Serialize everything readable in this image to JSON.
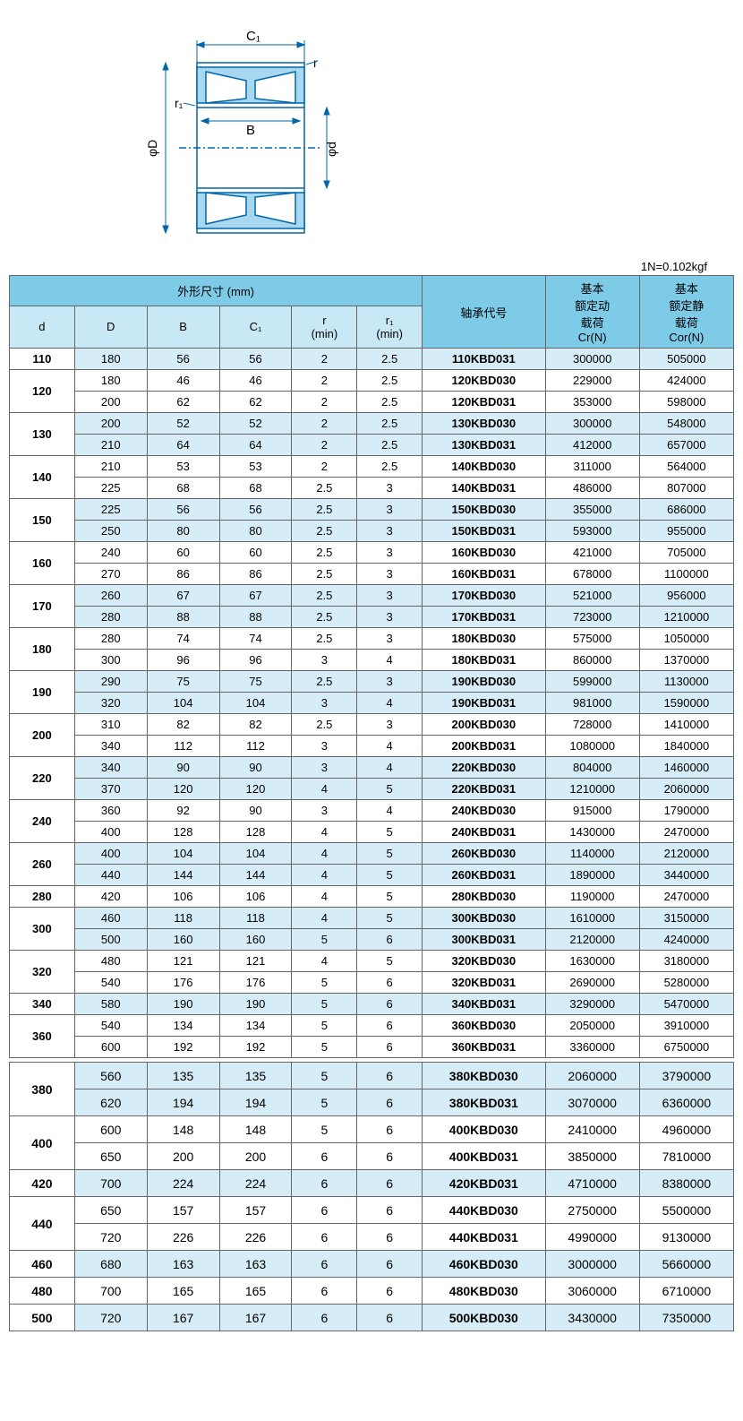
{
  "note": "1N=0.102kgf",
  "diagram_labels": {
    "C1": "C₁",
    "r": "r",
    "r1": "r₁",
    "B": "B",
    "phiD": "φD",
    "phid": "φd"
  },
  "headers": {
    "dims_title": "外形尺寸 (mm)",
    "bearing_no": "轴承代号",
    "cr_title": "基本\n额定动\n载荷\nCr(N)",
    "cor_title": "基本\n额定静\n载荷\nCor(N)",
    "d": "d",
    "D": "D",
    "B": "B",
    "C1": "C₁",
    "r": "r\n(min)",
    "r1": "r₁\n(min)"
  },
  "groups": [
    {
      "d": "110",
      "band": "a",
      "rows": [
        {
          "D": "180",
          "B": "56",
          "C1": "56",
          "r": "2",
          "r1": "2.5",
          "no": "110KBD031",
          "cr": "300000",
          "cor": "505000"
        }
      ]
    },
    {
      "d": "120",
      "band": "b",
      "rows": [
        {
          "D": "180",
          "B": "46",
          "C1": "46",
          "r": "2",
          "r1": "2.5",
          "no": "120KBD030",
          "cr": "229000",
          "cor": "424000"
        },
        {
          "D": "200",
          "B": "62",
          "C1": "62",
          "r": "2",
          "r1": "2.5",
          "no": "120KBD031",
          "cr": "353000",
          "cor": "598000"
        }
      ]
    },
    {
      "d": "130",
      "band": "a",
      "rows": [
        {
          "D": "200",
          "B": "52",
          "C1": "52",
          "r": "2",
          "r1": "2.5",
          "no": "130KBD030",
          "cr": "300000",
          "cor": "548000"
        },
        {
          "D": "210",
          "B": "64",
          "C1": "64",
          "r": "2",
          "r1": "2.5",
          "no": "130KBD031",
          "cr": "412000",
          "cor": "657000"
        }
      ]
    },
    {
      "d": "140",
      "band": "b",
      "rows": [
        {
          "D": "210",
          "B": "53",
          "C1": "53",
          "r": "2",
          "r1": "2.5",
          "no": "140KBD030",
          "cr": "311000",
          "cor": "564000"
        },
        {
          "D": "225",
          "B": "68",
          "C1": "68",
          "r": "2.5",
          "r1": "3",
          "no": "140KBD031",
          "cr": "486000",
          "cor": "807000"
        }
      ]
    },
    {
      "d": "150",
      "band": "a",
      "rows": [
        {
          "D": "225",
          "B": "56",
          "C1": "56",
          "r": "2.5",
          "r1": "3",
          "no": "150KBD030",
          "cr": "355000",
          "cor": "686000"
        },
        {
          "D": "250",
          "B": "80",
          "C1": "80",
          "r": "2.5",
          "r1": "3",
          "no": "150KBD031",
          "cr": "593000",
          "cor": "955000"
        }
      ]
    },
    {
      "d": "160",
      "band": "b",
      "rows": [
        {
          "D": "240",
          "B": "60",
          "C1": "60",
          "r": "2.5",
          "r1": "3",
          "no": "160KBD030",
          "cr": "421000",
          "cor": "705000"
        },
        {
          "D": "270",
          "B": "86",
          "C1": "86",
          "r": "2.5",
          "r1": "3",
          "no": "160KBD031",
          "cr": "678000",
          "cor": "1100000"
        }
      ]
    },
    {
      "d": "170",
      "band": "a",
      "rows": [
        {
          "D": "260",
          "B": "67",
          "C1": "67",
          "r": "2.5",
          "r1": "3",
          "no": "170KBD030",
          "cr": "521000",
          "cor": "956000"
        },
        {
          "D": "280",
          "B": "88",
          "C1": "88",
          "r": "2.5",
          "r1": "3",
          "no": "170KBD031",
          "cr": "723000",
          "cor": "1210000"
        }
      ]
    },
    {
      "d": "180",
      "band": "b",
      "rows": [
        {
          "D": "280",
          "B": "74",
          "C1": "74",
          "r": "2.5",
          "r1": "3",
          "no": "180KBD030",
          "cr": "575000",
          "cor": "1050000"
        },
        {
          "D": "300",
          "B": "96",
          "C1": "96",
          "r": "3",
          "r1": "4",
          "no": "180KBD031",
          "cr": "860000",
          "cor": "1370000"
        }
      ]
    },
    {
      "d": "190",
      "band": "a",
      "rows": [
        {
          "D": "290",
          "B": "75",
          "C1": "75",
          "r": "2.5",
          "r1": "3",
          "no": "190KBD030",
          "cr": "599000",
          "cor": "1130000"
        },
        {
          "D": "320",
          "B": "104",
          "C1": "104",
          "r": "3",
          "r1": "4",
          "no": "190KBD031",
          "cr": "981000",
          "cor": "1590000"
        }
      ]
    },
    {
      "d": "200",
      "band": "b",
      "rows": [
        {
          "D": "310",
          "B": "82",
          "C1": "82",
          "r": "2.5",
          "r1": "3",
          "no": "200KBD030",
          "cr": "728000",
          "cor": "1410000"
        },
        {
          "D": "340",
          "B": "112",
          "C1": "112",
          "r": "3",
          "r1": "4",
          "no": "200KBD031",
          "cr": "1080000",
          "cor": "1840000"
        }
      ]
    },
    {
      "d": "220",
      "band": "a",
      "rows": [
        {
          "D": "340",
          "B": "90",
          "C1": "90",
          "r": "3",
          "r1": "4",
          "no": "220KBD030",
          "cr": "804000",
          "cor": "1460000"
        },
        {
          "D": "370",
          "B": "120",
          "C1": "120",
          "r": "4",
          "r1": "5",
          "no": "220KBD031",
          "cr": "1210000",
          "cor": "2060000"
        }
      ]
    },
    {
      "d": "240",
      "band": "b",
      "rows": [
        {
          "D": "360",
          "B": "92",
          "C1": "90",
          "r": "3",
          "r1": "4",
          "no": "240KBD030",
          "cr": "915000",
          "cor": "1790000"
        },
        {
          "D": "400",
          "B": "128",
          "C1": "128",
          "r": "4",
          "r1": "5",
          "no": "240KBD031",
          "cr": "1430000",
          "cor": "2470000"
        }
      ]
    },
    {
      "d": "260",
      "band": "a",
      "rows": [
        {
          "D": "400",
          "B": "104",
          "C1": "104",
          "r": "4",
          "r1": "5",
          "no": "260KBD030",
          "cr": "1140000",
          "cor": "2120000"
        },
        {
          "D": "440",
          "B": "144",
          "C1": "144",
          "r": "4",
          "r1": "5",
          "no": "260KBD031",
          "cr": "1890000",
          "cor": "3440000"
        }
      ]
    },
    {
      "d": "280",
      "band": "b",
      "rows": [
        {
          "D": "420",
          "B": "106",
          "C1": "106",
          "r": "4",
          "r1": "5",
          "no": "280KBD030",
          "cr": "1190000",
          "cor": "2470000"
        }
      ]
    },
    {
      "d": "300",
      "band": "a",
      "rows": [
        {
          "D": "460",
          "B": "118",
          "C1": "118",
          "r": "4",
          "r1": "5",
          "no": "300KBD030",
          "cr": "1610000",
          "cor": "3150000"
        },
        {
          "D": "500",
          "B": "160",
          "C1": "160",
          "r": "5",
          "r1": "6",
          "no": "300KBD031",
          "cr": "2120000",
          "cor": "4240000"
        }
      ]
    },
    {
      "d": "320",
      "band": "b",
      "rows": [
        {
          "D": "480",
          "B": "121",
          "C1": "121",
          "r": "4",
          "r1": "5",
          "no": "320KBD030",
          "cr": "1630000",
          "cor": "3180000"
        },
        {
          "D": "540",
          "B": "176",
          "C1": "176",
          "r": "5",
          "r1": "6",
          "no": "320KBD031",
          "cr": "2690000",
          "cor": "5280000"
        }
      ]
    },
    {
      "d": "340",
      "band": "a",
      "rows": [
        {
          "D": "580",
          "B": "190",
          "C1": "190",
          "r": "5",
          "r1": "6",
          "no": "340KBD031",
          "cr": "3290000",
          "cor": "5470000"
        }
      ]
    },
    {
      "d": "360",
      "band": "b",
      "rows": [
        {
          "D": "540",
          "B": "134",
          "C1": "134",
          "r": "5",
          "r1": "6",
          "no": "360KBD030",
          "cr": "2050000",
          "cor": "3910000"
        },
        {
          "D": "600",
          "B": "192",
          "C1": "192",
          "r": "5",
          "r1": "6",
          "no": "360KBD031",
          "cr": "3360000",
          "cor": "6750000"
        }
      ]
    }
  ],
  "groups2": [
    {
      "d": "380",
      "band": "a",
      "rows": [
        {
          "D": "560",
          "B": "135",
          "C1": "135",
          "r": "5",
          "r1": "6",
          "no": "380KBD030",
          "cr": "2060000",
          "cor": "3790000"
        },
        {
          "D": "620",
          "B": "194",
          "C1": "194",
          "r": "5",
          "r1": "6",
          "no": "380KBD031",
          "cr": "3070000",
          "cor": "6360000"
        }
      ]
    },
    {
      "d": "400",
      "band": "b",
      "rows": [
        {
          "D": "600",
          "B": "148",
          "C1": "148",
          "r": "5",
          "r1": "6",
          "no": "400KBD030",
          "cr": "2410000",
          "cor": "4960000"
        },
        {
          "D": "650",
          "B": "200",
          "C1": "200",
          "r": "6",
          "r1": "6",
          "no": "400KBD031",
          "cr": "3850000",
          "cor": "7810000"
        }
      ]
    },
    {
      "d": "420",
      "band": "a",
      "rows": [
        {
          "D": "700",
          "B": "224",
          "C1": "224",
          "r": "6",
          "r1": "6",
          "no": "420KBD031",
          "cr": "4710000",
          "cor": "8380000"
        }
      ]
    },
    {
      "d": "440",
      "band": "b",
      "rows": [
        {
          "D": "650",
          "B": "157",
          "C1": "157",
          "r": "6",
          "r1": "6",
          "no": "440KBD030",
          "cr": "2750000",
          "cor": "5500000"
        },
        {
          "D": "720",
          "B": "226",
          "C1": "226",
          "r": "6",
          "r1": "6",
          "no": "440KBD031",
          "cr": "4990000",
          "cor": "9130000"
        }
      ]
    },
    {
      "d": "460",
      "band": "a",
      "rows": [
        {
          "D": "680",
          "B": "163",
          "C1": "163",
          "r": "6",
          "r1": "6",
          "no": "460KBD030",
          "cr": "3000000",
          "cor": "5660000"
        }
      ]
    },
    {
      "d": "480",
      "band": "b",
      "rows": [
        {
          "D": "700",
          "B": "165",
          "C1": "165",
          "r": "6",
          "r1": "6",
          "no": "480KBD030",
          "cr": "3060000",
          "cor": "6710000"
        }
      ]
    },
    {
      "d": "500",
      "band": "a",
      "rows": [
        {
          "D": "720",
          "B": "167",
          "C1": "167",
          "r": "6",
          "r1": "6",
          "no": "500KBD030",
          "cr": "3430000",
          "cor": "7350000"
        }
      ]
    }
  ],
  "colors": {
    "header_top": "#7ecbe8",
    "header_sub": "#c9e8f5",
    "band_a": "#d6edf7",
    "band_b": "#ffffff",
    "border": "#666666",
    "diagram_stroke": "#0066aa",
    "diagram_fill": "#a8d8ef"
  }
}
